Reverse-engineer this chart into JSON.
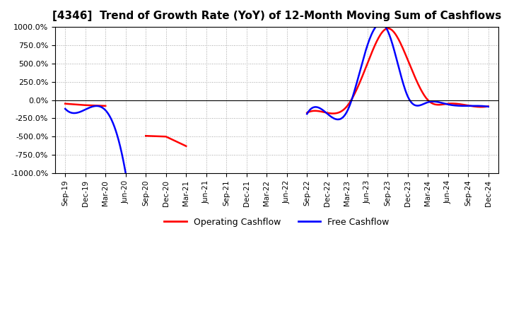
{
  "title": "[4346]  Trend of Growth Rate (YoY) of 12-Month Moving Sum of Cashflows",
  "title_fontsize": 11,
  "ylim": [
    -1000,
    1000
  ],
  "yticks": [
    -1000,
    -750,
    -500,
    -250,
    0,
    250,
    500,
    750,
    1000
  ],
  "background_color": "#ffffff",
  "grid_color": "#999999",
  "legend_entries": [
    "Operating Cashflow",
    "Free Cashflow"
  ],
  "legend_colors": [
    "#ff0000",
    "#0000ff"
  ],
  "x_labels": [
    "Sep-19",
    "Dec-19",
    "Mar-20",
    "Jun-20",
    "Sep-20",
    "Dec-20",
    "Mar-21",
    "Jun-21",
    "Sep-21",
    "Dec-21",
    "Mar-22",
    "Jun-22",
    "Sep-22",
    "Dec-22",
    "Mar-23",
    "Jun-23",
    "Sep-23",
    "Dec-23",
    "Mar-24",
    "Jun-24",
    "Sep-24",
    "Dec-24"
  ],
  "operating_cashflow": [
    -50,
    -70,
    -80,
    null,
    -490,
    -500,
    -630,
    null,
    null,
    null,
    null,
    null,
    -175,
    -175,
    -80,
    500,
    980,
    550,
    0,
    -50,
    -75,
    -85
  ],
  "free_cashflow": [
    -120,
    -130,
    -140,
    -1000,
    null,
    null,
    null,
    null,
    null,
    null,
    null,
    null,
    -190,
    -185,
    -150,
    750,
    950,
    50,
    -30,
    -60,
    -80,
    -90
  ],
  "operating_color": "#ff0000",
  "free_color": "#0000ff",
  "line_width": 1.8
}
